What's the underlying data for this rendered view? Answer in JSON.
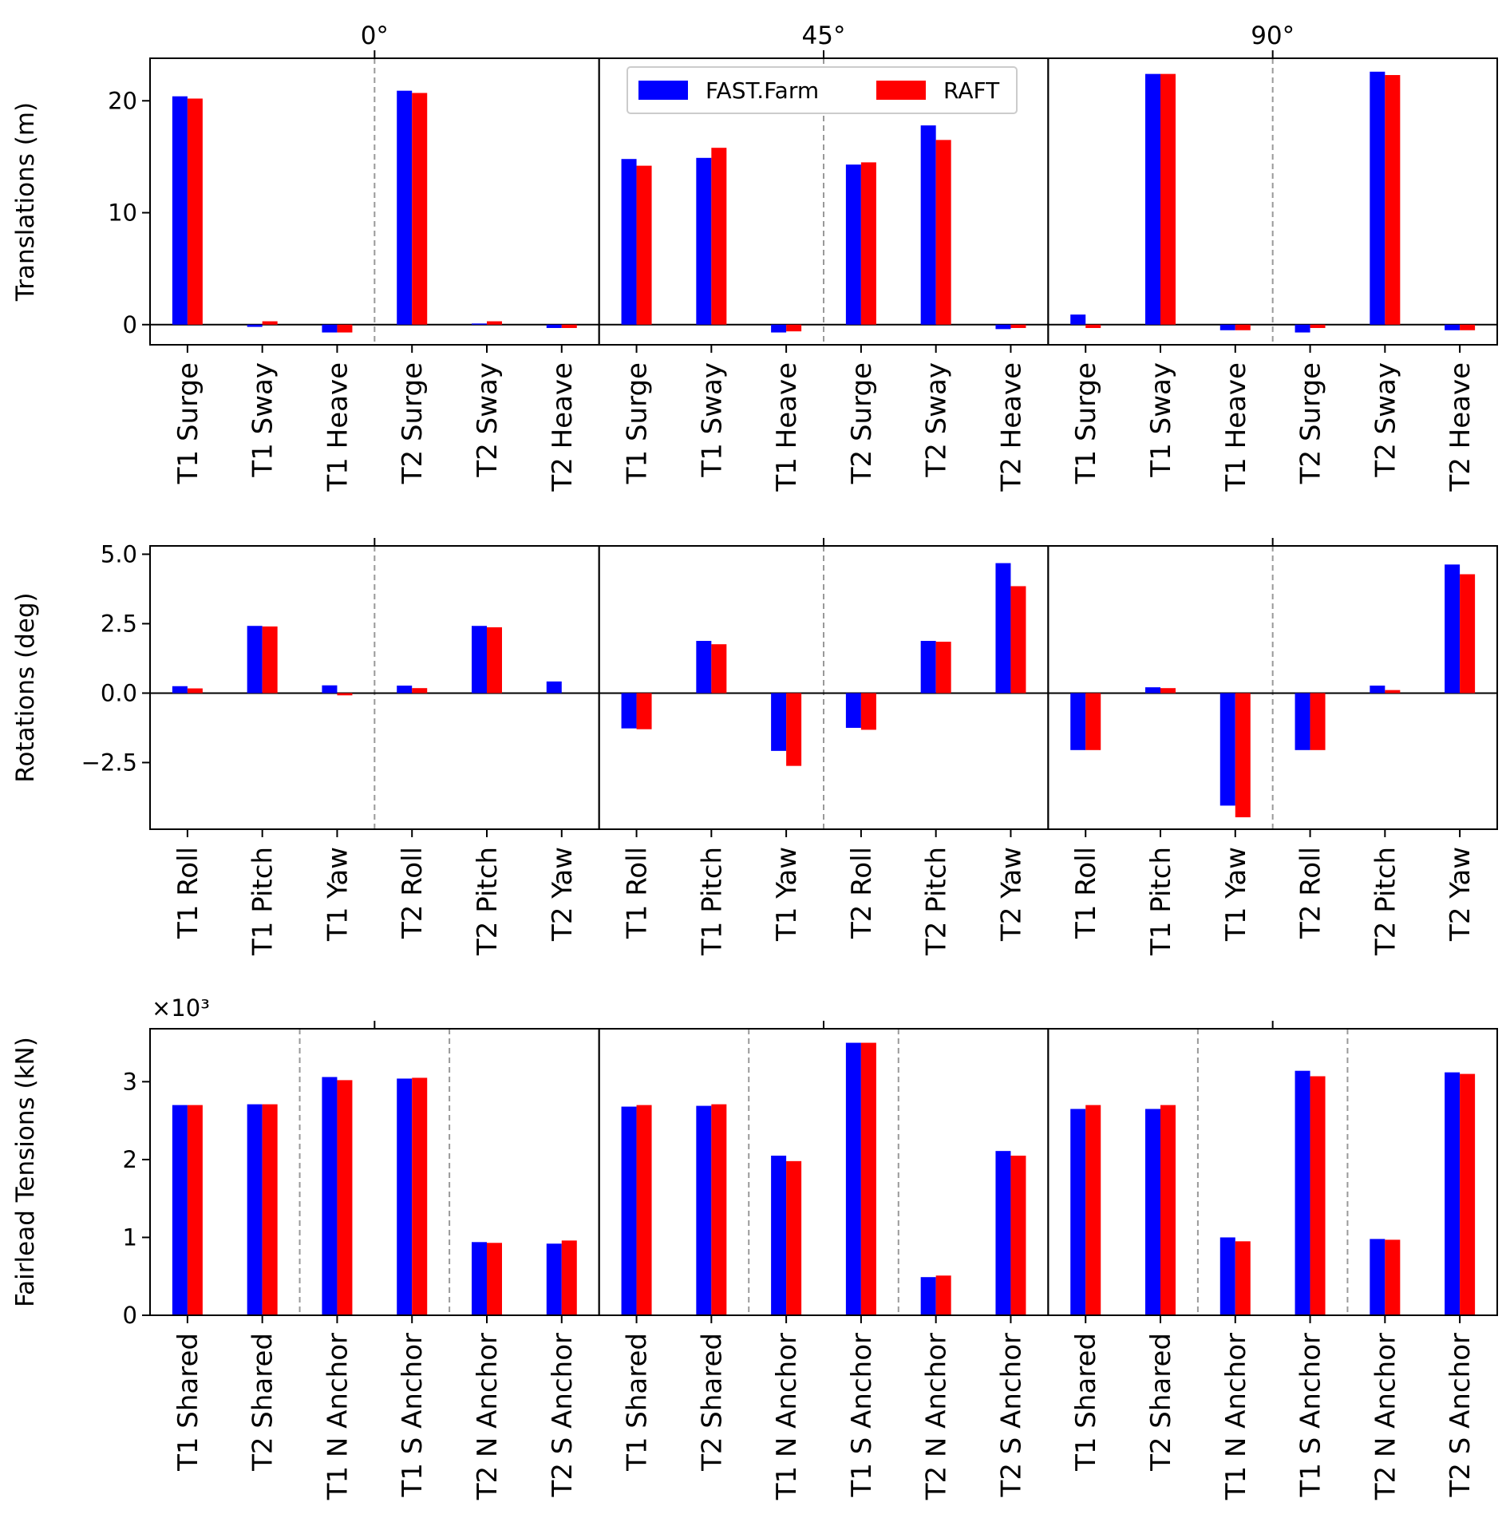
{
  "chart_data": [
    {
      "type": "bar",
      "id": "translations",
      "ylabel": "Translations (m)",
      "ylim": [
        -1.8,
        23.8
      ],
      "yticks": [
        0,
        10,
        20
      ],
      "ytick_labels": [
        "0",
        "10",
        "20"
      ],
      "angle_labels": [
        "0°",
        "45°",
        "90°"
      ],
      "categories": [
        "T1 Surge",
        "T1 Sway",
        "T1 Heave",
        "T2 Surge",
        "T2 Sway",
        "T2 Heave"
      ],
      "series": [
        {
          "name": "FAST.Farm",
          "color": "#0000ff",
          "values": [
            [
              20.4,
              -0.2,
              -0.7,
              20.9,
              0.1,
              -0.3
            ],
            [
              14.8,
              14.9,
              -0.7,
              14.3,
              17.8,
              -0.4
            ],
            [
              0.9,
              22.4,
              -0.5,
              -0.7,
              22.6,
              -0.5
            ]
          ]
        },
        {
          "name": "RAFT",
          "color": "#ff0000",
          "values": [
            [
              20.2,
              0.3,
              -0.7,
              20.7,
              0.3,
              -0.3
            ],
            [
              14.2,
              15.8,
              -0.6,
              14.5,
              16.5,
              -0.3
            ],
            [
              -0.3,
              22.4,
              -0.5,
              -0.3,
              22.3,
              -0.5
            ]
          ]
        }
      ]
    },
    {
      "type": "bar",
      "id": "rotations",
      "ylabel": "Rotations (deg)",
      "ylim": [
        -4.9,
        5.3
      ],
      "yticks": [
        -2.5,
        0.0,
        2.5,
        5.0
      ],
      "ytick_labels": [
        "−2.5",
        "0.0",
        "2.5",
        "5.0"
      ],
      "categories": [
        "T1 Roll",
        "T1 Pitch",
        "T1 Yaw",
        "T2 Roll",
        "T2 Pitch",
        "T2 Yaw"
      ],
      "series": [
        {
          "name": "FAST.Farm",
          "color": "#0000ff",
          "values": [
            [
              0.25,
              2.42,
              0.28,
              0.27,
              2.42,
              0.42
            ],
            [
              -1.27,
              1.88,
              -2.08,
              -1.25,
              1.88,
              4.68
            ],
            [
              -2.05,
              0.21,
              -4.05,
              -2.05,
              0.27,
              4.63
            ]
          ]
        },
        {
          "name": "RAFT",
          "color": "#ff0000",
          "values": [
            [
              0.17,
              2.4,
              -0.08,
              0.18,
              2.37,
              0.0
            ],
            [
              -1.3,
              1.76,
              -2.62,
              -1.32,
              1.85,
              3.85
            ],
            [
              -2.05,
              0.18,
              -4.47,
              -2.05,
              0.11,
              4.28
            ]
          ]
        }
      ]
    },
    {
      "type": "bar",
      "id": "tensions",
      "ylabel": "Fairlead Tensions (kN)",
      "scale_label": "×10³",
      "ylim": [
        0,
        3.68
      ],
      "yticks": [
        0,
        1,
        2,
        3
      ],
      "ytick_labels": [
        "0",
        "1",
        "2",
        "3"
      ],
      "categories": [
        "T1 Shared",
        "T2 Shared",
        "T1 N Anchor",
        "T1 S Anchor",
        "T2 N Anchor",
        "T2 S Anchor"
      ],
      "series": [
        {
          "name": "FAST.Farm",
          "color": "#0000ff",
          "values": [
            [
              2.7,
              2.71,
              3.06,
              3.04,
              0.94,
              0.92
            ],
            [
              2.68,
              2.69,
              2.05,
              3.5,
              0.49,
              2.11
            ],
            [
              2.65,
              2.65,
              1.0,
              3.14,
              0.98,
              3.12
            ]
          ]
        },
        {
          "name": "RAFT",
          "color": "#ff0000",
          "values": [
            [
              2.7,
              2.71,
              3.02,
              3.05,
              0.93,
              0.96
            ],
            [
              2.7,
              2.71,
              1.98,
              3.5,
              0.51,
              2.05
            ],
            [
              2.7,
              2.7,
              0.95,
              3.07,
              0.97,
              3.1
            ]
          ]
        }
      ]
    }
  ],
  "legend": {
    "position": "upper center",
    "entries": [
      "FAST.Farm",
      "RAFT"
    ]
  }
}
